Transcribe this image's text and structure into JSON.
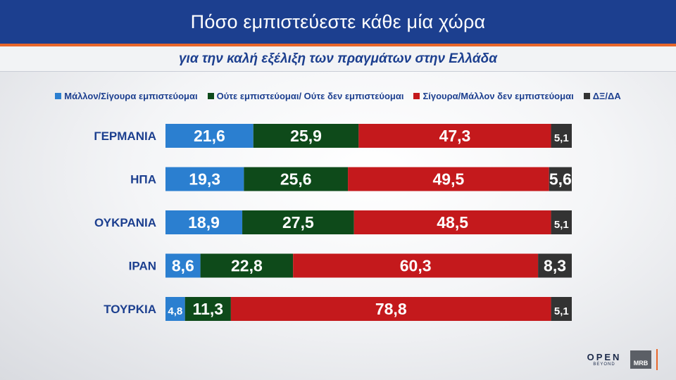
{
  "header": {
    "title": "Πόσο εμπιστεύεστε κάθε μία χώρα",
    "subtitle": "για την καλή εξέλιξη των πραγμάτων στην Ελλάδα"
  },
  "colors": {
    "header_bg": "#1c3f8f",
    "accent": "#e8662a",
    "trust": "#2b7fd0",
    "neutral": "#0e4a1a",
    "distrust": "#c4191c",
    "dk": "#333333"
  },
  "chart_data": {
    "type": "bar",
    "orientation": "horizontal",
    "stacked": true,
    "title": "Πόσο εμπιστεύεστε κάθε μία χώρα",
    "subtitle": "για την καλή εξέλιξη των πραγμάτων στην Ελλάδα",
    "categories": [
      "ΓΕΡΜΑΝΙΑ",
      "ΗΠΑ",
      "ΟΥΚΡΑΝΙΑ",
      "ΙΡΑΝ",
      "ΤΟΥΡΚΙΑ"
    ],
    "series": [
      {
        "name": "Μάλλον/Σίγουρα εμπιστεύομαι",
        "color": "#2b7fd0",
        "values": [
          21.6,
          19.3,
          18.9,
          8.6,
          4.8
        ],
        "labels": [
          "21,6",
          "19,3",
          "18,9",
          "8,6",
          "4,8"
        ]
      },
      {
        "name": "Ούτε εμπιστεύομαι/ Ούτε δεν εμπιστεύομαι",
        "color": "#0e4a1a",
        "values": [
          25.9,
          25.6,
          27.5,
          22.8,
          11.3
        ],
        "labels": [
          "25,9",
          "25,6",
          "27,5",
          "22,8",
          "11,3"
        ]
      },
      {
        "name": "Σίγουρα/Μάλλον δεν εμπιστεύομαι",
        "color": "#c4191c",
        "values": [
          47.3,
          49.5,
          48.5,
          60.3,
          78.8
        ],
        "labels": [
          "47,3",
          "49,5",
          "48,5",
          "60,3",
          "78,8"
        ]
      },
      {
        "name": "ΔΞ/ΔΑ",
        "color": "#333333",
        "values": [
          5.1,
          5.6,
          5.1,
          8.3,
          5.1
        ],
        "labels": [
          "5,1",
          "5,6",
          "5,1",
          "8,3",
          "5,1"
        ]
      }
    ],
    "xlim": [
      0,
      100
    ],
    "legend": "top",
    "grid": false,
    "data_labels": true
  },
  "logos": {
    "open": "OPEN",
    "open_sub": "BEYOND",
    "mrb": "MRB"
  }
}
